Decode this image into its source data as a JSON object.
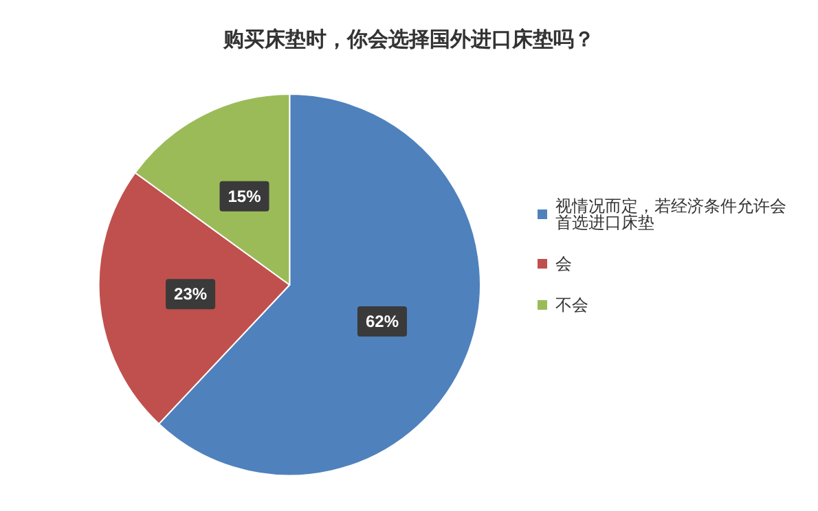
{
  "chart_data": {
    "type": "pie",
    "title": "购买床垫时，你会选择国外进口床垫吗？",
    "categories": [
      "视情况而定，若经济条件允许会首选进口床垫",
      "会",
      "不会"
    ],
    "values": [
      62,
      23,
      15
    ],
    "colors": [
      "#4f81bd",
      "#c0504d",
      "#9bbb59"
    ],
    "value_labels": [
      "62%",
      "23%",
      "15%"
    ],
    "legend": "right"
  }
}
